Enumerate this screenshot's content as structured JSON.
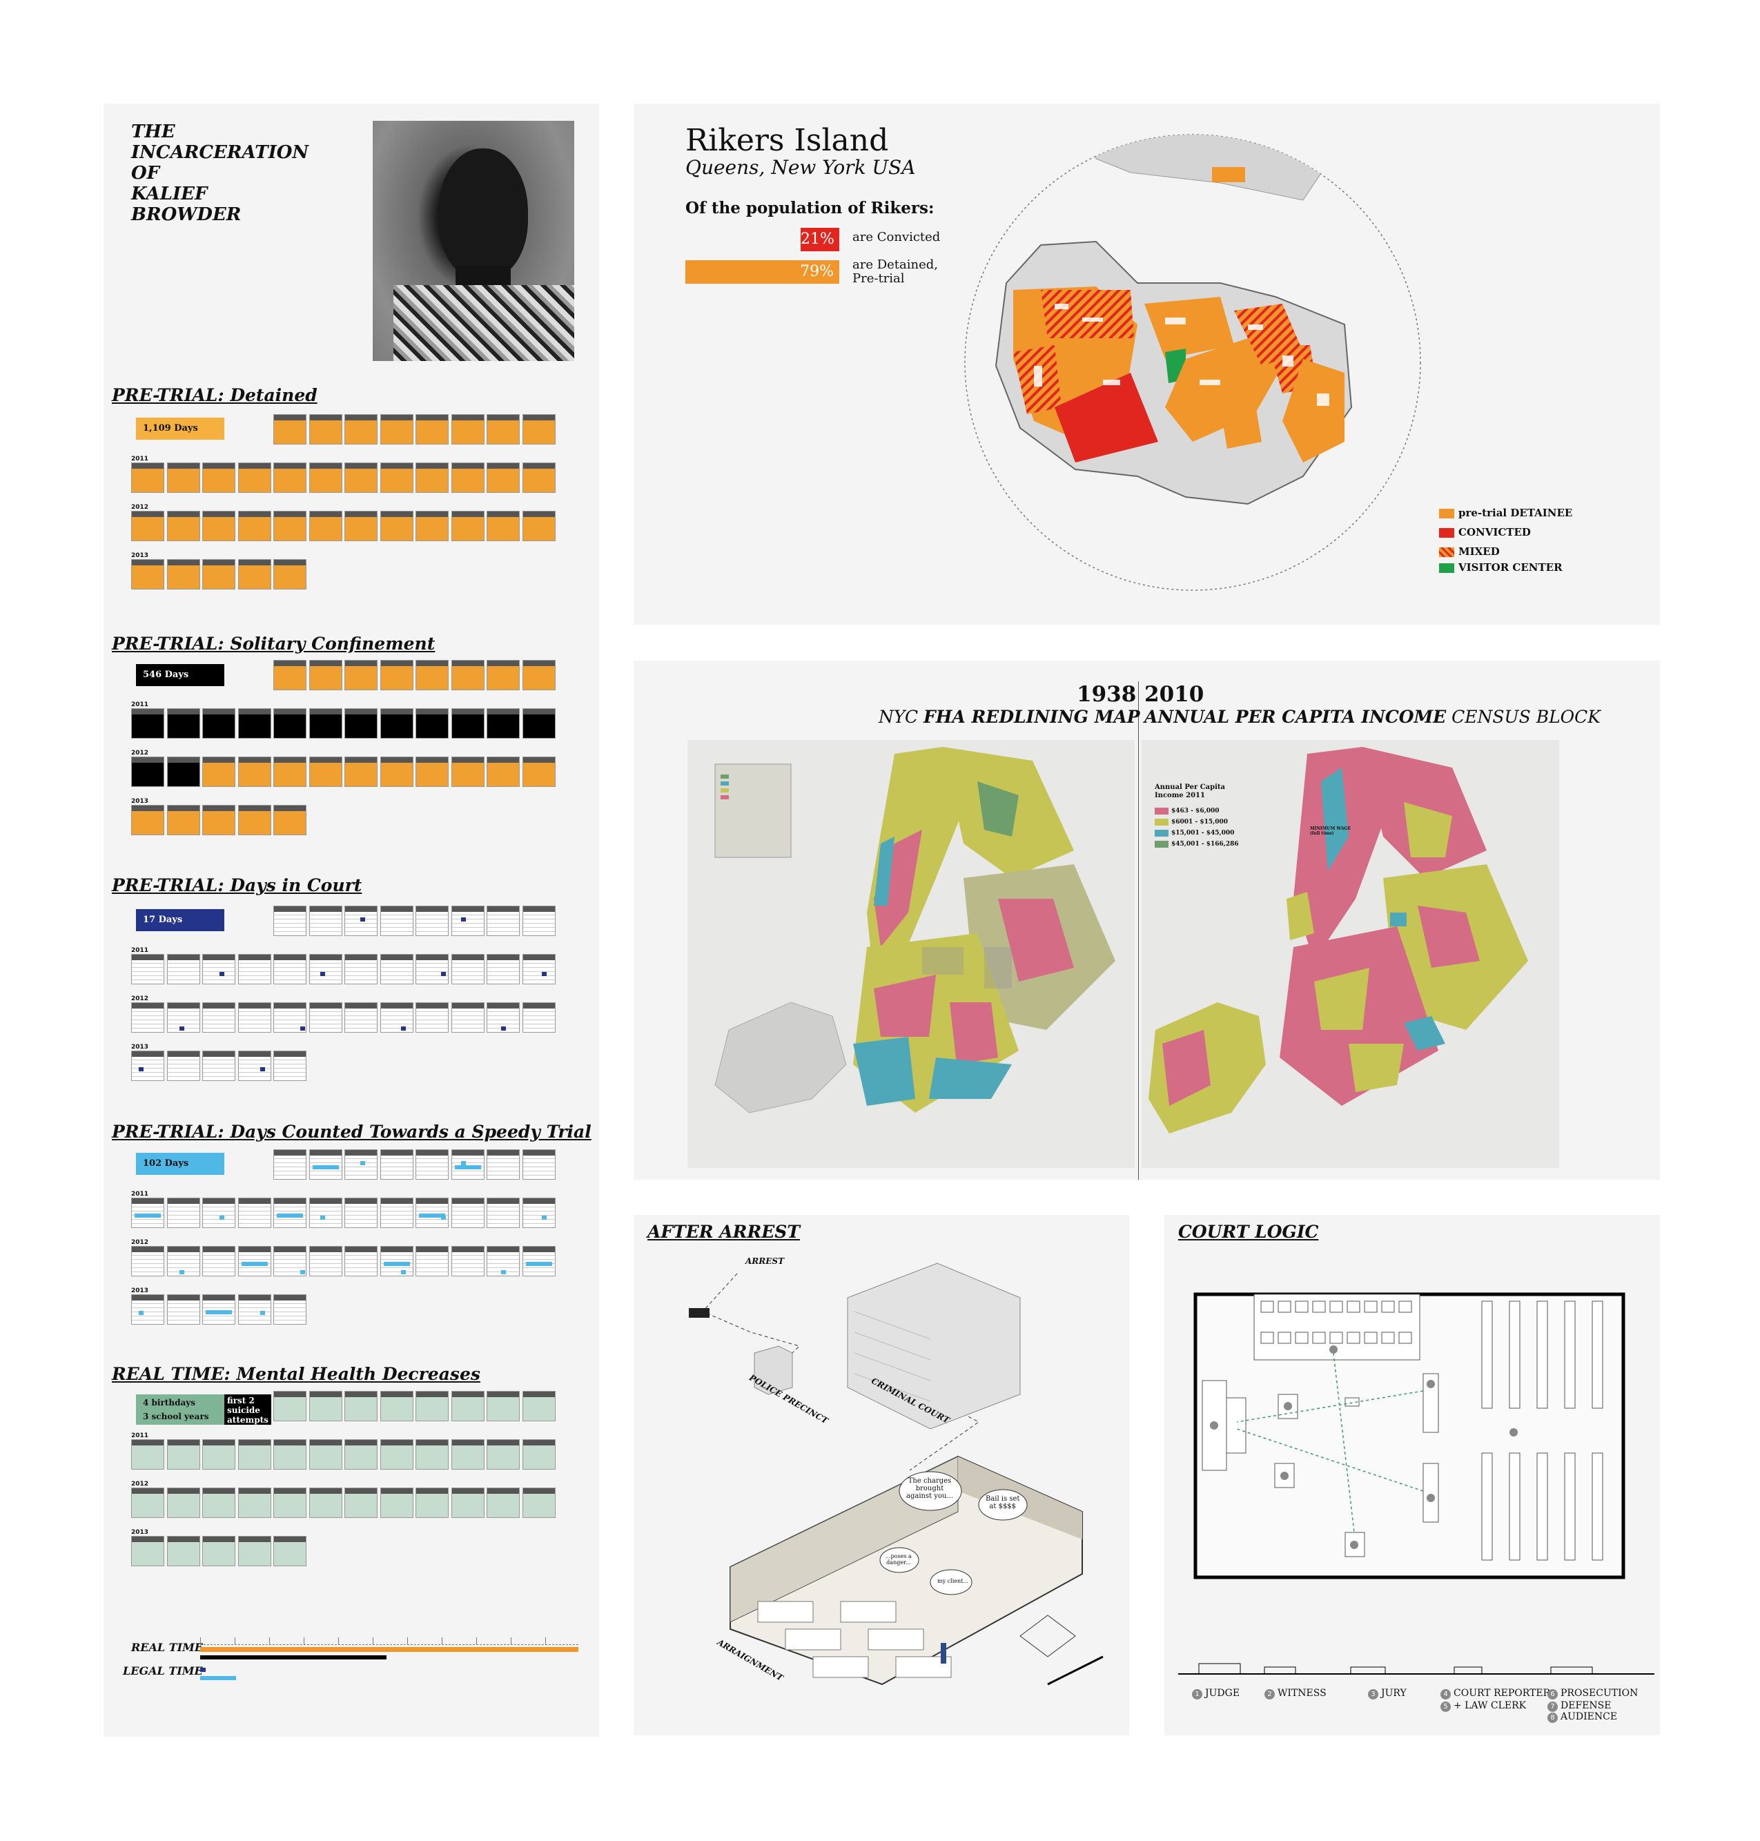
{
  "left_panel": {
    "title": "THE\nINCARCERATION\nOF\nKALIEF\nBROWDER",
    "sections": [
      {
        "title": "PRE-TRIAL: Detained",
        "badge": "1,109 Days",
        "color": "#f0a030"
      },
      {
        "title": "PRE-TRIAL: Solitary Confinement",
        "badge": "546 Days",
        "color": "#000000"
      },
      {
        "title": "PRE-TRIAL: Days in Court",
        "badge": "17 Days",
        "color": "#23348a"
      },
      {
        "title": "PRE-TRIAL: Days Counted Towards a Speedy Trial",
        "badge": "102 Days",
        "color": "#4fb8e6"
      },
      {
        "title": "REAL TIME: Mental Health Decreases",
        "badge": "4 birthdays\n3 school years",
        "badge2": "first 2\nsuicide\nattempts",
        "color": "#7fb596"
      }
    ],
    "years": [
      "2011",
      "2012",
      "2013"
    ],
    "timeline": {
      "real_label": "REAL TIME",
      "legal_label": "LEGAL TIME"
    }
  },
  "rikers": {
    "title": "Rikers Island",
    "subtitle": "Queens, New York USA",
    "pop_label": "Of the population of Rikers:",
    "convicted_pct": "21%",
    "convicted_text": "are  Convicted",
    "detained_pct": "79%",
    "detained_text": "are  Detained,\n       Pre-trial",
    "legend": [
      {
        "label": "pre-trial DETAINEE",
        "color": "#f0962a"
      },
      {
        "label": "CONVICTED",
        "color": "#e0261f"
      },
      {
        "label": "MIXED",
        "color": "#f07030"
      },
      {
        "label": "VISITOR CENTER",
        "color": "#21a04a"
      }
    ]
  },
  "redline": {
    "year_left": "1938",
    "year_right": "2010",
    "sub_left_pre": "NYC ",
    "sub_left_bold": "FHA REDLINING MAP",
    "sub_right_bold": "ANNUAL PER CAPITA INCOME",
    "sub_right_post": " CENSUS BLOCK",
    "income_title": "Annual Per Capita\nIncome 2011",
    "income_legend": [
      {
        "label": "$463 - $6,000",
        "color": "#d46c86"
      },
      {
        "label": "$6001 - $15,000",
        "color": "#c5c454"
      },
      {
        "label": "$15,001 - $45,000",
        "color": "#4fa8b8"
      },
      {
        "label": "$45,001 - $166,286",
        "color": "#6d9e6c"
      }
    ],
    "min_wage": "MINIMUM WAGE\n(full time)"
  },
  "arrest": {
    "title": "AFTER ARREST",
    "labels": {
      "arrest": "ARREST",
      "precinct": "POLICE PRECINCT",
      "court": "CRIMINAL COURT",
      "arraignment": "ARRAIGNMENT",
      "bubble1": "The charges\nbrought\nagainst you...",
      "bubble2": "Bail  is set\nat $$$$",
      "bubble3": "...poses a\ndanger...",
      "bubble4": "my client..."
    }
  },
  "court": {
    "title": "COURT LOGIC",
    "legend": [
      {
        "n": "1",
        "label": "JUDGE"
      },
      {
        "n": "2",
        "label": "WITNESS"
      },
      {
        "n": "3",
        "label": "JURY"
      },
      {
        "n": "4",
        "label": "COURT REPORTER"
      },
      {
        "n": "5",
        "label": "+ LAW CLERK"
      },
      {
        "n": "6",
        "label": "PROSECUTION"
      },
      {
        "n": "7",
        "label": "DEFENSE"
      },
      {
        "n": "8",
        "label": "AUDIENCE"
      }
    ]
  }
}
